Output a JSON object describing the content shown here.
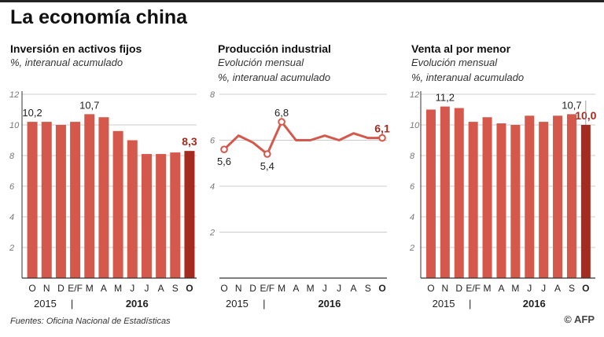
{
  "title": "La economía china",
  "source": "Fuentes: Oficina Nacional de Estadísticas",
  "credit": "© AFP",
  "colors": {
    "bar": "#d4584b",
    "highlight": "#a52a1f",
    "line": "#d4584b",
    "grid": "#bbbbbb",
    "axis": "#333333"
  },
  "chart_data": [
    {
      "type": "bar",
      "title": "Inversión en activos fijos",
      "subtitle": [
        "%, interanual acumulado"
      ],
      "categories": [
        "O",
        "N",
        "D",
        "E/F",
        "M",
        "A",
        "M",
        "J",
        "J",
        "A",
        "S",
        "O"
      ],
      "values": [
        10.2,
        10.2,
        10.0,
        10.2,
        10.7,
        10.5,
        9.6,
        9.0,
        8.1,
        8.1,
        8.2,
        8.3
      ],
      "labels": [
        {
          "index": 0,
          "text": "10,2",
          "highlight": false
        },
        {
          "index": 4,
          "text": "10,7",
          "highlight": false
        },
        {
          "index": 11,
          "text": "8,3",
          "highlight": true
        }
      ],
      "highlight_index": 11,
      "ylim": [
        0,
        12
      ],
      "yticks": [
        "2",
        "4",
        "6",
        "8",
        "10",
        "12"
      ],
      "ytick_values": [
        2,
        4,
        6,
        8,
        10,
        12
      ],
      "years": {
        "first": "2015",
        "separator": "|",
        "second": "2016"
      }
    },
    {
      "type": "line",
      "title": "Producción industrial",
      "subtitle": [
        "Evolución mensual",
        "%, interanual acumulado"
      ],
      "categories": [
        "O",
        "N",
        "D",
        "E/F",
        "M",
        "A",
        "M",
        "J",
        "J",
        "A",
        "S",
        "O"
      ],
      "values": [
        5.6,
        6.2,
        5.9,
        5.4,
        6.8,
        6.0,
        6.0,
        6.2,
        6.0,
        6.3,
        6.1,
        6.1
      ],
      "labels": [
        {
          "index": 0,
          "text": "5,6",
          "highlight": false,
          "pos": "below"
        },
        {
          "index": 3,
          "text": "5,4",
          "highlight": false,
          "pos": "below"
        },
        {
          "index": 4,
          "text": "6,8",
          "highlight": false,
          "pos": "above"
        },
        {
          "index": 11,
          "text": "6,1",
          "highlight": true,
          "pos": "above"
        }
      ],
      "markers": [
        0,
        3,
        4,
        11
      ],
      "highlight_index": 11,
      "ylim": [
        0,
        8
      ],
      "yticks": [
        "2",
        "4",
        "6",
        "8"
      ],
      "ytick_values": [
        2,
        4,
        6,
        8
      ],
      "years": {
        "first": "2015",
        "separator": "|",
        "second": "2016"
      }
    },
    {
      "type": "bar",
      "title": "Venta al por menor",
      "subtitle": [
        "Evolución mensual",
        "%, interanual acumulado"
      ],
      "categories": [
        "O",
        "N",
        "D",
        "E/F",
        "M",
        "A",
        "M",
        "J",
        "J",
        "A",
        "S",
        "O"
      ],
      "values": [
        11.0,
        11.2,
        11.1,
        10.2,
        10.5,
        10.1,
        10.0,
        10.6,
        10.2,
        10.6,
        10.7,
        10.0
      ],
      "labels": [
        {
          "index": 1,
          "text": "11,2",
          "highlight": false
        },
        {
          "index": 10,
          "text": "10,7",
          "highlight": false
        },
        {
          "index": 11,
          "text": "10,0",
          "highlight": true
        }
      ],
      "highlight_index": 11,
      "ylim": [
        0,
        12
      ],
      "yticks": [
        "2",
        "4",
        "6",
        "8",
        "10",
        "12"
      ],
      "ytick_values": [
        2,
        4,
        6,
        8,
        10,
        12
      ],
      "years": {
        "first": "2015",
        "separator": "|",
        "second": "2016"
      }
    }
  ]
}
